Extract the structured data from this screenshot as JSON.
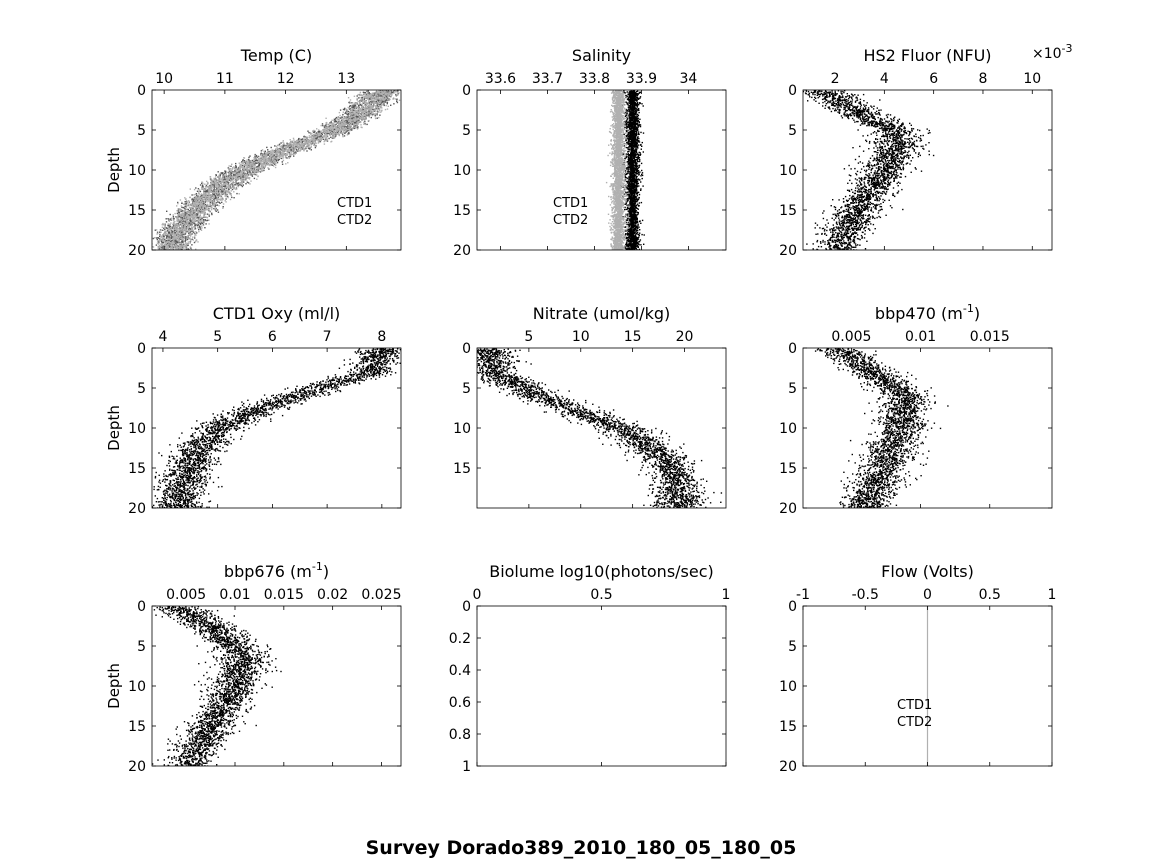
{
  "figure": {
    "suptitle": "Survey Dorado389_2010_180_05_180_05",
    "colors": {
      "ctd1": "#000000",
      "ctd2": "#b0b0b0",
      "axes": "#000000"
    }
  },
  "chart_data": [
    {
      "type": "scatter",
      "title": "Temp (C)",
      "ylabel": "Depth",
      "xlim": [
        9.8,
        13.9
      ],
      "ylim": [
        20,
        0
      ],
      "xticks": [
        10,
        11,
        12,
        13
      ],
      "yticks": [
        0,
        5,
        10,
        15,
        20
      ],
      "legend": [
        "CTD1",
        "CTD2"
      ],
      "legend_position": "right",
      "series": [
        {
          "name": "CTD1",
          "color": "#555555",
          "profile": [
            [
              0,
              13.6
            ],
            [
              3,
              13.2
            ],
            [
              5,
              12.8
            ],
            [
              8,
              11.8
            ],
            [
              10,
              11.3
            ],
            [
              12,
              10.9
            ],
            [
              15,
              10.5
            ],
            [
              18,
              10.2
            ],
            [
              20,
              10.1
            ]
          ]
        },
        {
          "name": "CTD2",
          "color": "#b0b0b0",
          "profile": [
            [
              0,
              13.6
            ],
            [
              3,
              13.2
            ],
            [
              5,
              12.8
            ],
            [
              8,
              11.8
            ],
            [
              10,
              11.3
            ],
            [
              12,
              10.9
            ],
            [
              15,
              10.5
            ],
            [
              18,
              10.2
            ],
            [
              20,
              10.1
            ]
          ]
        }
      ]
    },
    {
      "type": "scatter",
      "title": "Salinity",
      "ylabel": "",
      "xlim": [
        33.55,
        34.08
      ],
      "ylim": [
        20,
        0
      ],
      "xticks": [
        "33.6",
        "33.7",
        "33.8",
        "33.9",
        "34"
      ],
      "yticks": [
        0,
        5,
        10,
        15,
        20
      ],
      "legend": [
        "CTD1",
        "CTD2"
      ],
      "legend_position": "left",
      "series": [
        {
          "name": "CTD1",
          "color": "#000000",
          "profile": [
            [
              0,
              33.88
            ],
            [
              5,
              33.88
            ],
            [
              10,
              33.88
            ],
            [
              15,
              33.88
            ],
            [
              20,
              33.88
            ]
          ]
        },
        {
          "name": "CTD2",
          "color": "#b0b0b0",
          "profile": [
            [
              0,
              33.85
            ],
            [
              5,
              33.85
            ],
            [
              10,
              33.85
            ],
            [
              15,
              33.85
            ],
            [
              20,
              33.85
            ]
          ]
        }
      ]
    },
    {
      "type": "scatter",
      "title": "HS2 Fluor (NFU)",
      "exponent": "×10",
      "exponent_power": "-3",
      "ylabel": "",
      "xlim": [
        0.7,
        10.8
      ],
      "ylim": [
        20,
        0
      ],
      "xticks": [
        2,
        4,
        6,
        8,
        10
      ],
      "yticks": [
        0,
        5,
        10,
        15,
        20
      ],
      "series": [
        {
          "name": "HS2 Fluor",
          "color": "#000000",
          "profile": [
            [
              0,
              1.5
            ],
            [
              3,
              3.0
            ],
            [
              5,
              4.5
            ],
            [
              7,
              4.5
            ],
            [
              10,
              4.0
            ],
            [
              13,
              3.3
            ],
            [
              16,
              2.7
            ],
            [
              19,
              2.2
            ],
            [
              20,
              2.0
            ]
          ]
        }
      ]
    },
    {
      "type": "scatter",
      "title": "CTD1 Oxy (ml/l)",
      "ylabel": "Depth",
      "xlim": [
        3.8,
        8.35
      ],
      "ylim": [
        20,
        0
      ],
      "xticks": [
        4,
        5,
        6,
        7,
        8
      ],
      "yticks": [
        0,
        5,
        10,
        15,
        20
      ],
      "series": [
        {
          "name": "CTD1 Oxy",
          "color": "#000000",
          "profile": [
            [
              0,
              8.0
            ],
            [
              3,
              7.8
            ],
            [
              5,
              6.8
            ],
            [
              8,
              5.6
            ],
            [
              10,
              5.0
            ],
            [
              13,
              4.6
            ],
            [
              16,
              4.4
            ],
            [
              19,
              4.3
            ],
            [
              20,
              4.3
            ]
          ]
        }
      ]
    },
    {
      "type": "scatter",
      "title": "Nitrate (umol/kg)",
      "ylabel": "",
      "xlim": [
        0,
        24
      ],
      "ylim": [
        20,
        0
      ],
      "xticks": [
        5,
        10,
        15,
        20
      ],
      "yticks": [
        0,
        5,
        10,
        15
      ],
      "series": [
        {
          "name": "Nitrate",
          "color": "#000000",
          "profile": [
            [
              0,
              1.2
            ],
            [
              3,
              1.5
            ],
            [
              6,
              6.0
            ],
            [
              10,
              14.0
            ],
            [
              14,
              18.5
            ],
            [
              17,
              19.3
            ],
            [
              20,
              19.6
            ]
          ]
        }
      ]
    },
    {
      "type": "scatter",
      "title": "bbp470 (m",
      "title_power": "-1",
      "title_suffix": ")",
      "ylabel": "",
      "xlim": [
        0.0015,
        0.0195
      ],
      "ylim": [
        20,
        0
      ],
      "xticks": [
        "0.005",
        "0.01",
        "0.015"
      ],
      "yticks": [
        0,
        5,
        10,
        15,
        20
      ],
      "series": [
        {
          "name": "bbp470",
          "color": "#000000",
          "profile": [
            [
              0,
              0.004
            ],
            [
              3,
              0.0065
            ],
            [
              6,
              0.009
            ],
            [
              10,
              0.0085
            ],
            [
              14,
              0.0075
            ],
            [
              18,
              0.0065
            ],
            [
              20,
              0.006
            ]
          ]
        }
      ]
    },
    {
      "type": "scatter",
      "title": "bbp676 (m",
      "title_power": "-1",
      "title_suffix": ")",
      "ylabel": "Depth",
      "xlim": [
        0.0015,
        0.027
      ],
      "ylim": [
        20,
        0
      ],
      "xticks": [
        "0.005",
        "0.01",
        "0.015",
        "0.02",
        "0.025"
      ],
      "yticks": [
        0,
        5,
        10,
        15,
        20
      ],
      "series": [
        {
          "name": "bbp676",
          "color": "#000000",
          "profile": [
            [
              0,
              0.004
            ],
            [
              3,
              0.008
            ],
            [
              6,
              0.011
            ],
            [
              10,
              0.01
            ],
            [
              14,
              0.008
            ],
            [
              18,
              0.006
            ],
            [
              20,
              0.005
            ]
          ]
        }
      ]
    },
    {
      "type": "scatter",
      "title": "Biolume log10(photons/sec)",
      "ylabel": "",
      "xlim": [
        0,
        1
      ],
      "ylim": [
        1,
        0
      ],
      "xticks": [
        "0",
        "0.5",
        "1"
      ],
      "yticks": [
        "0",
        "0.2",
        "0.4",
        "0.6",
        "0.8",
        "1"
      ],
      "series": []
    },
    {
      "type": "scatter",
      "title": "Flow (Volts)",
      "ylabel": "",
      "xlim": [
        -1,
        1
      ],
      "ylim": [
        20,
        0
      ],
      "xticks": [
        "-1",
        "-0.5",
        "0",
        "0.5",
        "1"
      ],
      "yticks": [
        0,
        5,
        10,
        15,
        20
      ],
      "legend": [
        "CTD1",
        "CTD2"
      ],
      "legend_position": "center",
      "series": [
        {
          "name": "CTD2",
          "color": "#b0b0b0",
          "profile": [
            [
              0,
              0
            ],
            [
              20,
              0
            ]
          ]
        }
      ]
    }
  ]
}
